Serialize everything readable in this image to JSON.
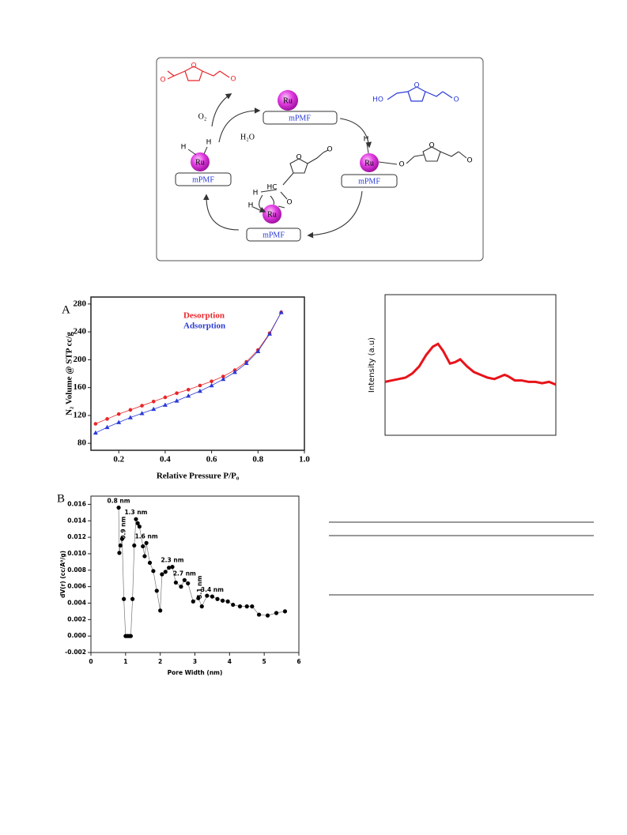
{
  "scheme": {
    "ru": "Ru",
    "support": "mPMF",
    "o2": "O₂",
    "h2o": "H₂O",
    "h": "H",
    "hc": "HC",
    "o": "O",
    "ho": "HO"
  },
  "chart_data": [
    {
      "type": "line",
      "panel_label": "A",
      "xlabel": "Relative Pressure P/P₀",
      "ylabel": "N₂ Volume @ STP cc/g",
      "xlim": [
        0.08,
        1.0
      ],
      "ylim": [
        70,
        290
      ],
      "xticks": [
        0.2,
        0.4,
        0.6,
        0.8,
        {
          "value": 1,
          "label": "1.0"
        }
      ],
      "yticks": [
        80,
        120,
        160,
        200,
        240,
        280
      ],
      "x": [
        0.1,
        0.15,
        0.2,
        0.25,
        0.3,
        0.35,
        0.4,
        0.45,
        0.5,
        0.55,
        0.6,
        0.65,
        0.7,
        0.75,
        0.8,
        0.85,
        0.9
      ],
      "series": [
        {
          "name": "Desorption",
          "color": "#e8262a",
          "marker": "circle",
          "values": [
            108,
            115,
            122,
            128,
            134,
            140,
            146,
            152,
            157,
            163,
            169,
            176,
            185,
            197,
            214,
            238,
            268
          ]
        },
        {
          "name": "Adsorption",
          "color": "#2a3bd6",
          "marker": "triangle",
          "values": [
            95,
            103,
            110,
            117,
            123,
            129,
            135,
            141,
            148,
            155,
            163,
            172,
            182,
            195,
            212,
            237,
            268
          ]
        }
      ]
    },
    {
      "type": "line",
      "panel_label": "B",
      "xlabel": "Pore Width (nm)",
      "ylabel": "dV(r) (cc/A⁰/g)",
      "xlim": [
        0,
        6
      ],
      "ylim": [
        -0.002,
        0.017
      ],
      "xticks": [
        0,
        1,
        2,
        3,
        4,
        5,
        6
      ],
      "yticks": [
        -0.002,
        {
          "value": 0,
          "label": "0.000"
        },
        0.002,
        0.004,
        0.006,
        0.008,
        {
          "value": 0.01,
          "label": "0.010"
        },
        0.012,
        0.014,
        0.016
      ],
      "x": [
        0.8,
        0.82,
        0.85,
        0.9,
        0.95,
        1.0,
        1.05,
        1.1,
        1.15,
        1.2,
        1.25,
        1.3,
        1.35,
        1.4,
        1.5,
        1.55,
        1.6,
        1.7,
        1.8,
        1.9,
        2.0,
        2.05,
        2.15,
        2.25,
        2.35,
        2.45,
        2.6,
        2.7,
        2.8,
        2.95,
        3.1,
        3.2,
        3.35,
        3.5,
        3.65,
        3.8,
        3.95,
        4.1,
        4.3,
        4.5,
        4.65,
        4.85,
        5.1,
        5.35,
        5.6
      ],
      "series": [
        {
          "color": "#000000",
          "marker": "circle",
          "values": [
            0.0156,
            0.0101,
            0.011,
            0.0118,
            0.0045,
            0,
            0,
            0,
            0,
            0.0045,
            0.011,
            0.0142,
            0.0137,
            0.0133,
            0.0109,
            0.0097,
            0.0113,
            0.0089,
            0.0079,
            0.0055,
            0.0031,
            0.0075,
            0.0078,
            0.0083,
            0.0084,
            0.0065,
            0.006,
            0.0068,
            0.0064,
            0.0042,
            0.0046,
            0.0036,
            0.0049,
            0.0048,
            0.0045,
            0.0043,
            0.0042,
            0.0038,
            0.0036,
            0.0036,
            0.0036,
            0.0026,
            0.0025,
            0.0028,
            0.003
          ]
        }
      ],
      "annotations": [
        {
          "text": "0.8 nm",
          "x": 0.8,
          "y": 0.0156
        },
        {
          "text": "0.9 nm",
          "x": 0.9,
          "y": 0.0118,
          "vertical": true
        },
        {
          "text": "1.3 nm",
          "x": 1.3,
          "y": 0.0142
        },
        {
          "text": "1.6 nm",
          "x": 1.6,
          "y": 0.0113
        },
        {
          "text": "2.3 nm",
          "x": 2.35,
          "y": 0.0084
        },
        {
          "text": "2.7 nm",
          "x": 2.7,
          "y": 0.0068
        },
        {
          "text": "3.1 nm",
          "x": 3.1,
          "y": 0.0046,
          "vertical": true
        },
        {
          "text": "3.4 nm",
          "x": 3.5,
          "y": 0.0048
        }
      ]
    },
    {
      "type": "line",
      "ylabel": "Intensity (a.u)",
      "xlim": [
        0,
        100
      ],
      "ylim": [
        0,
        100
      ],
      "x": [
        0,
        4,
        8,
        12,
        16,
        20,
        24,
        28,
        31,
        34,
        38,
        41,
        44,
        48,
        52,
        56,
        60,
        64,
        68,
        70,
        72,
        76,
        80,
        84,
        88,
        92,
        96,
        100
      ],
      "series": [
        {
          "color": "#e8131a",
          "values": [
            38,
            39,
            40,
            41,
            44,
            49,
            57,
            63,
            65,
            60,
            51,
            52,
            54,
            49,
            45,
            43,
            41,
            40,
            42,
            43,
            42,
            39,
            39,
            38,
            38,
            37,
            38,
            36
          ]
        }
      ]
    }
  ]
}
